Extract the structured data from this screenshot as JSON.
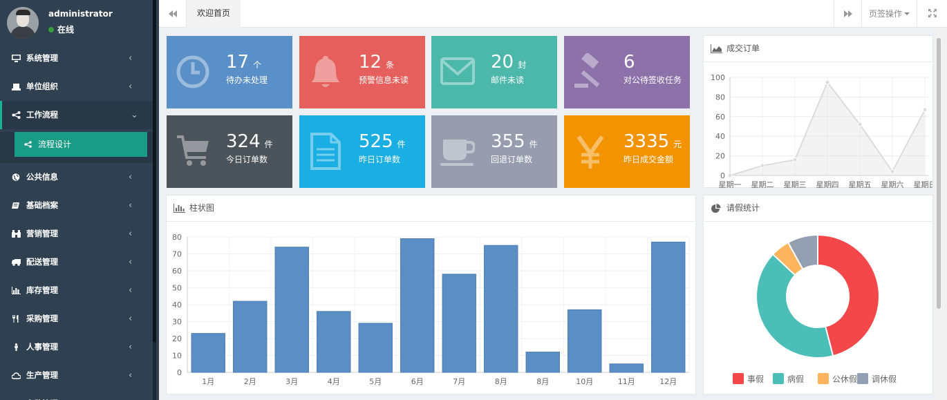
{
  "user": {
    "name": "administrator",
    "status": "在线"
  },
  "nav": {
    "items": [
      {
        "label": "系统管理",
        "icon": "desktop-icon"
      },
      {
        "label": "单位组织",
        "icon": "laptop-icon"
      },
      {
        "label": "工作流程",
        "icon": "share-icon",
        "expanded": true
      },
      {
        "label": "公共信息",
        "icon": "globe-icon"
      },
      {
        "label": "基础档案",
        "icon": "book-icon"
      },
      {
        "label": "营销管理",
        "icon": "binoculars-icon"
      },
      {
        "label": "配送管理",
        "icon": "truck-icon"
      },
      {
        "label": "库存管理",
        "icon": "bar-chart-icon"
      },
      {
        "label": "采购管理",
        "icon": "cutlery-icon"
      },
      {
        "label": "人事管理",
        "icon": "male-icon"
      },
      {
        "label": "生产管理",
        "icon": "cloud-icon"
      },
      {
        "label": "安监管理",
        "icon": "shield-icon"
      }
    ],
    "sub_item": {
      "label": "流程设计",
      "icon": "share-alt-icon"
    }
  },
  "topbar": {
    "tab_label": "欢迎首页",
    "tab_ops_label": "页签操作"
  },
  "tiles": [
    {
      "num": "17",
      "unit": "个",
      "desc": "待办未处理",
      "color": "#5b8fc7",
      "icon": "clock-icon"
    },
    {
      "num": "12",
      "unit": "条",
      "desc": "预警信息未读",
      "color": "#e55f5c",
      "icon": "bell-icon"
    },
    {
      "num": "20",
      "unit": "封",
      "desc": "邮件未读",
      "color": "#4cb8aa",
      "icon": "envelope-icon"
    },
    {
      "num": "6",
      "unit": "",
      "desc": "对公待签收任务",
      "color": "#8c72a9",
      "icon": "gavel-icon"
    },
    {
      "num": "324",
      "unit": "件",
      "desc": "今日订单数",
      "color": "#4c545b",
      "icon": "cart-icon"
    },
    {
      "num": "525",
      "unit": "件",
      "desc": "昨日订单数",
      "color": "#1aaee2",
      "icon": "file-icon"
    },
    {
      "num": "355",
      "unit": "件",
      "desc": "回退订单数",
      "color": "#979daf",
      "icon": "coffee-icon"
    },
    {
      "num": "3335",
      "unit": "元",
      "desc": "昨日成交金额",
      "color": "#f29402",
      "icon": "yen-icon"
    }
  ],
  "panels": {
    "orders_title": "成交订单",
    "bar_title": "柱状图",
    "leave_title": "请假统计"
  },
  "chart_data": [
    {
      "type": "area",
      "title": "成交订单",
      "categories": [
        "星期一",
        "星期二",
        "星期三",
        "星期四",
        "星期五",
        "星期六",
        "星期日"
      ],
      "values": [
        0,
        10,
        16,
        95,
        52,
        4,
        67
      ],
      "ylim": [
        0,
        100
      ],
      "yticks": [
        0,
        20,
        40,
        60,
        80,
        100
      ]
    },
    {
      "type": "bar",
      "title": "柱状图",
      "categories": [
        "1月",
        "2月",
        "3月",
        "4月",
        "5月",
        "6月",
        "7月",
        "8月",
        "8月",
        "10月",
        "11月",
        "12月"
      ],
      "values": [
        23,
        42,
        74,
        36,
        29,
        79,
        58,
        75,
        12,
        37,
        5,
        77
      ],
      "ylim": [
        0,
        80
      ],
      "yticks": [
        0,
        10,
        20,
        30,
        40,
        50,
        60,
        70,
        80
      ],
      "bar_color": "#5b8ec4"
    },
    {
      "type": "pie",
      "title": "请假统计",
      "labels": [
        "事假",
        "病假",
        "公休假",
        "调休假"
      ],
      "values": [
        46,
        41,
        5,
        8
      ],
      "colors": [
        "#f4474a",
        "#4bbfb7",
        "#fdb45c",
        "#949fb1"
      ]
    }
  ]
}
